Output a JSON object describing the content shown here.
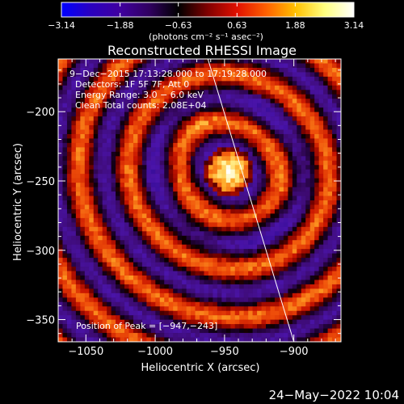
{
  "chart_data": {
    "type": "heatmap",
    "title": "Reconstructed RHESSI Image",
    "xlabel": "Heliocentric X (arcsec)",
    "ylabel": "Heliocentric Y (arcsec)",
    "xlim": [
      -1070,
      -866
    ],
    "ylim": [
      -366,
      -162
    ],
    "x_ticks": [
      -1050,
      -1000,
      -950,
      -900
    ],
    "x_tick_labels": [
      "−1050",
      "−1000",
      "−950",
      "−900"
    ],
    "y_ticks": [
      -200,
      -250,
      -300,
      -350
    ],
    "y_tick_labels": [
      "−200",
      "−250",
      "−300",
      "−350"
    ],
    "colorbar": {
      "min": -3.14,
      "max": 3.14,
      "ticks": [
        -3.14,
        -1.88,
        -0.63,
        0.63,
        1.88,
        3.14
      ],
      "tick_labels": [
        "−3.14",
        "−1.88",
        "−0.63",
        "0.63",
        "1.88",
        "3.14"
      ],
      "unit": "(photons cm⁻² s⁻¹ asec⁻²)",
      "colors": [
        "#0000ff",
        "#2a00c0",
        "#4000a0",
        "#300060",
        "#000000",
        "#800000",
        "#e01000",
        "#ff6000",
        "#ffc000",
        "#ffff80",
        "#ffffff"
      ]
    },
    "annotations": [
      "9−Dec−2015 17:13:28.000 to 17:19:28.000",
      "Detectors: 1F 5F 7F, Att 0",
      "Energy Range: 3.0 − 6.0 keV",
      "Clean     Total counts: 2.08E+04"
    ],
    "peak_label": "Position of Peak = [−947,−243]",
    "peak": {
      "x": -947,
      "y": -243
    },
    "limb_line": [
      [
        -962,
        -162
      ],
      [
        -900,
        -366
      ]
    ],
    "grid": false
  },
  "footer": {
    "date": "24−May−2022 10:04"
  }
}
